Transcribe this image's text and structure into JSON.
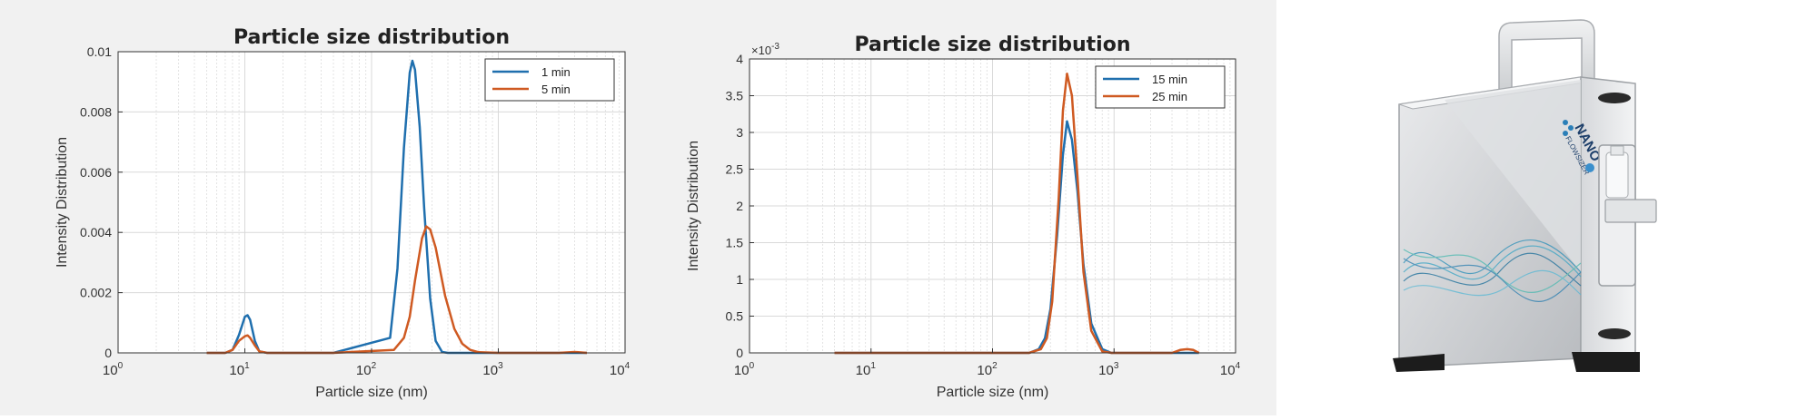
{
  "colors": {
    "blue": "#1f6fae",
    "orange": "#cf5a22",
    "grid": "#d9d9d9",
    "axis": "#333333"
  },
  "chart_data": [
    {
      "type": "line",
      "title": "Particle size distribution",
      "xlabel": "Particle size (nm)",
      "ylabel": "Intensity Distribution",
      "xscale": "log",
      "xlim": [
        1,
        10000
      ],
      "ylim": [
        0,
        0.01
      ],
      "grid": true,
      "legend_position": "top-right",
      "x_ticks": [
        {
          "base": "10",
          "exp": "0"
        },
        {
          "base": "10",
          "exp": "1"
        },
        {
          "base": "10",
          "exp": "2"
        },
        {
          "base": "10",
          "exp": "3"
        },
        {
          "base": "10",
          "exp": "4"
        }
      ],
      "y_ticks": [
        "0",
        "0.002",
        "0.004",
        "0.006",
        "0.008",
        "0.01"
      ],
      "y_tick_values": [
        0,
        0.002,
        0.004,
        0.006,
        0.008,
        0.01
      ],
      "series": [
        {
          "name": "1 min",
          "color": "#1f6fae",
          "x": [
            5,
            7,
            8,
            9,
            10,
            10.5,
            11,
            12,
            13,
            15,
            50,
            140,
            160,
            180,
            200,
            210,
            220,
            240,
            260,
            290,
            320,
            360,
            400,
            1000,
            5000
          ],
          "y": [
            0,
            0,
            0.0001,
            0.0006,
            0.0012,
            0.00125,
            0.0011,
            0.0004,
            5e-05,
            0,
            0,
            0.0005,
            0.0028,
            0.0068,
            0.0093,
            0.0097,
            0.0094,
            0.0075,
            0.0048,
            0.0018,
            0.0004,
            3e-05,
            0,
            0,
            0
          ]
        },
        {
          "name": "5 min",
          "color": "#cf5a22",
          "x": [
            5,
            7,
            8,
            9,
            10,
            10.5,
            11,
            12,
            13,
            15,
            50,
            150,
            180,
            200,
            220,
            250,
            270,
            290,
            320,
            380,
            450,
            520,
            600,
            700,
            1000,
            3000,
            4000,
            5000
          ],
          "y": [
            0,
            0,
            0.0001,
            0.0004,
            0.00055,
            0.00058,
            0.0005,
            0.00025,
            5e-05,
            0,
            0,
            0.0001,
            0.0005,
            0.0012,
            0.0024,
            0.0038,
            0.0042,
            0.0041,
            0.0035,
            0.0019,
            0.0008,
            0.0003,
            0.0001,
            2e-05,
            0,
            0,
            3e-05,
            0
          ]
        }
      ]
    },
    {
      "type": "line",
      "title": "Particle size distribution",
      "xlabel": "Particle size (nm)",
      "ylabel": "Intensity Distribution",
      "xscale": "log",
      "xlim": [
        1,
        10000
      ],
      "ylim": [
        0,
        0.004
      ],
      "y_multiplier": {
        "base": "×10",
        "exp": "-3"
      },
      "grid": true,
      "legend_position": "top-right",
      "x_ticks": [
        {
          "base": "10",
          "exp": "0"
        },
        {
          "base": "10",
          "exp": "1"
        },
        {
          "base": "10",
          "exp": "2"
        },
        {
          "base": "10",
          "exp": "3"
        },
        {
          "base": "10",
          "exp": "4"
        }
      ],
      "y_ticks": [
        "0",
        "0.5",
        "1",
        "1.5",
        "2",
        "2.5",
        "3",
        "3.5",
        "4"
      ],
      "y_tick_values": [
        0,
        0.0005,
        0.001,
        0.0015,
        0.002,
        0.0025,
        0.003,
        0.0035,
        0.004
      ],
      "series": [
        {
          "name": "15 min",
          "color": "#1f6fae",
          "x": [
            5,
            200,
            240,
            270,
            300,
            340,
            380,
            410,
            450,
            500,
            560,
            650,
            800,
            950,
            5000
          ],
          "y": [
            0,
            0,
            5e-05,
            0.0002,
            0.0006,
            0.0016,
            0.0027,
            0.00315,
            0.0029,
            0.0022,
            0.0012,
            0.0004,
            5e-05,
            0,
            0
          ]
        },
        {
          "name": "25 min",
          "color": "#cf5a22",
          "x": [
            5,
            200,
            250,
            280,
            310,
            350,
            380,
            410,
            450,
            500,
            560,
            650,
            800,
            950,
            3000,
            3500,
            4000,
            4500,
            5000
          ],
          "y": [
            0,
            0,
            5e-05,
            0.0002,
            0.0007,
            0.0021,
            0.0033,
            0.0038,
            0.0035,
            0.0024,
            0.0011,
            0.0003,
            2e-05,
            0,
            0,
            4e-05,
            5e-05,
            4e-05,
            0
          ]
        }
      ]
    }
  ],
  "product": {
    "logo_line1": "NANO",
    "logo_line2": "FLOWSIZER"
  }
}
